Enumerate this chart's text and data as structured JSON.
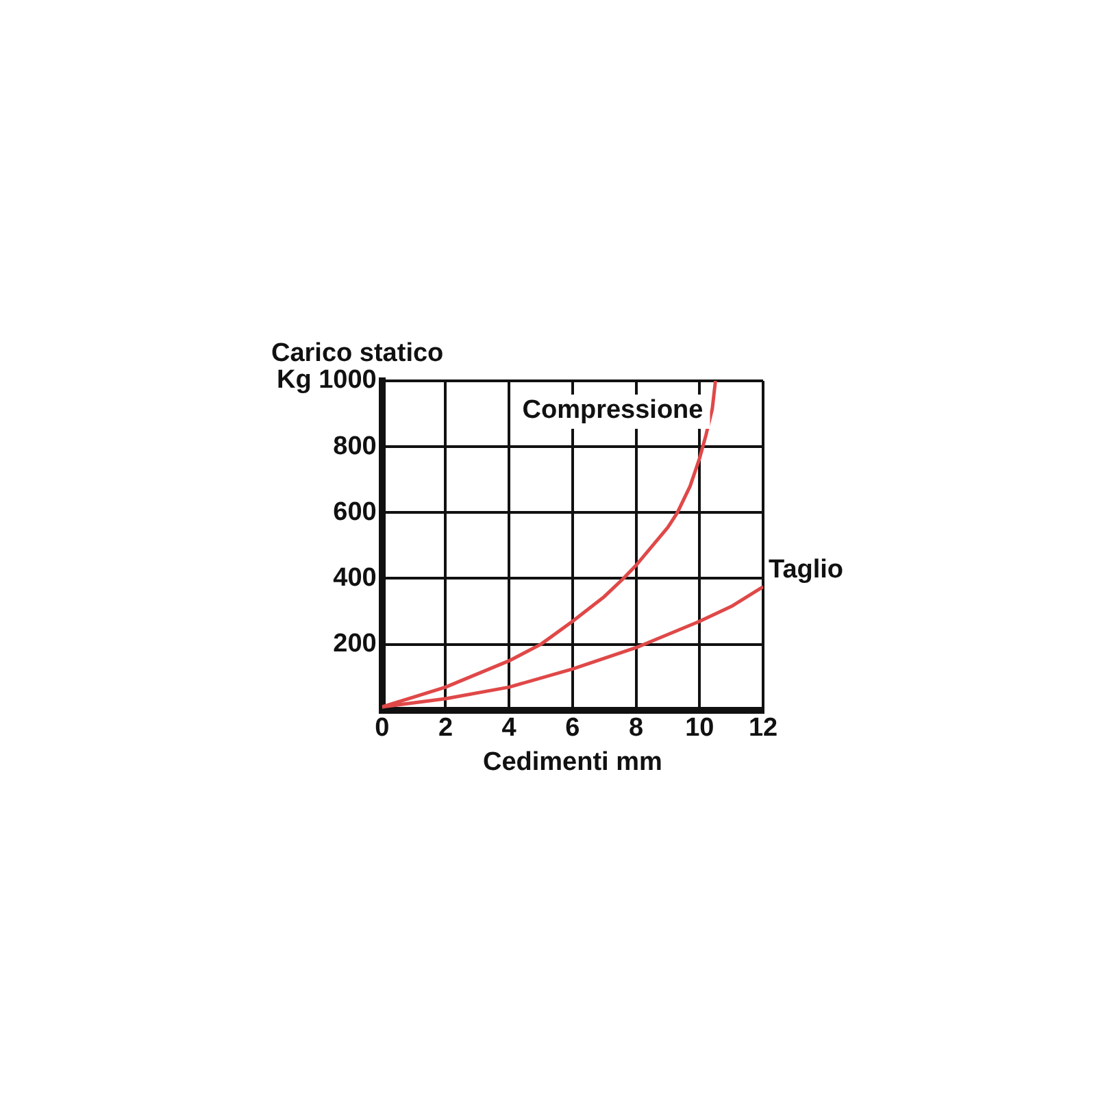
{
  "chart_data": {
    "type": "line",
    "xlabel": "Cedimenti mm",
    "ylabel": "Carico statico",
    "xlim": [
      0,
      12
    ],
    "xticks": [
      0,
      2,
      4,
      6,
      8,
      10,
      12
    ],
    "ylim": [
      0,
      1000
    ],
    "yticks": [
      {
        "value": 0,
        "label": null
      },
      200,
      400,
      600,
      800,
      {
        "value": 1000,
        "label": "Kg 1000"
      }
    ],
    "grid": true,
    "legend": false,
    "marker": "none",
    "line_style": "solid",
    "series": [
      {
        "name": "Compressione",
        "color": "#e04848",
        "x": [
          0,
          2,
          4,
          5,
          6,
          7,
          7.6,
          8,
          9,
          9.3,
          9.7,
          10,
          10.2,
          10.4,
          10.5
        ],
        "values": [
          10,
          70,
          150,
          200,
          270,
          345,
          400,
          440,
          555,
          600,
          680,
          765,
          835,
          915,
          1000
        ]
      },
      {
        "name": "Taglio",
        "color": "#e04848",
        "x": [
          0,
          2,
          4,
          6,
          8,
          10,
          11,
          12
        ],
        "values": [
          10,
          35,
          70,
          125,
          190,
          270,
          315,
          375
        ]
      }
    ]
  }
}
